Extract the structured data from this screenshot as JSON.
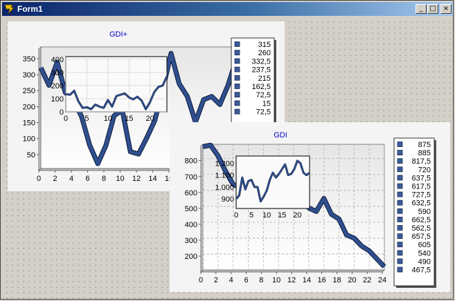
{
  "window": {
    "title": "Form1",
    "minimize_glyph": "_",
    "maximize_glyph": "□",
    "close_glyph": "×"
  },
  "colors": {
    "series_line": "#2f4f8f",
    "series_edge": "#0d1a3a",
    "title_text": "#0000cc",
    "legend_box": "#3d5a9a"
  },
  "chart_data": [
    {
      "type": "line",
      "title": "GDI+",
      "x": [
        0,
        1,
        2,
        3,
        4,
        5,
        6,
        7,
        8,
        9,
        10,
        11,
        12,
        13,
        14,
        15,
        16,
        17,
        18,
        19,
        20,
        21,
        22,
        23,
        24
      ],
      "values": [
        315,
        260,
        332.5,
        237.5,
        215,
        162.5,
        72.5,
        15,
        72.5,
        165,
        182.5,
        52.5,
        45,
        95,
        150,
        250,
        360,
        265,
        225,
        145,
        215,
        225,
        200,
        260,
        340
      ],
      "xlim": [
        0,
        24
      ],
      "ylim": [
        0,
        380
      ],
      "xticks": [
        0,
        2,
        4,
        6,
        8,
        10,
        12,
        14,
        16
      ],
      "yticks": [
        50,
        100,
        150,
        200,
        250,
        300,
        350
      ],
      "legend": [
        "315",
        "260",
        "332,5",
        "237,5",
        "215",
        "162,5",
        "72,5",
        "15",
        "72,5"
      ],
      "inset": {
        "x": [
          0,
          1,
          2,
          3,
          4,
          5,
          6,
          7,
          8,
          9,
          10,
          11,
          12,
          13,
          14,
          15,
          16,
          17,
          18,
          19,
          20,
          21,
          22,
          23,
          24
        ],
        "values": [
          135,
          130,
          160,
          80,
          30,
          35,
          20,
          55,
          40,
          30,
          90,
          40,
          120,
          130,
          140,
          110,
          95,
          115,
          85,
          20,
          75,
          150,
          190,
          200,
          270
        ],
        "xlim": [
          0,
          24
        ],
        "ylim": [
          0,
          420
        ],
        "xticks": [
          0,
          5,
          10,
          15,
          20
        ],
        "yticks": [
          0,
          100,
          200,
          300,
          400
        ]
      }
    },
    {
      "type": "line",
      "title": "GDI",
      "x": [
        0,
        1,
        2,
        3,
        4,
        5,
        6,
        7,
        8,
        9,
        10,
        11,
        12,
        13,
        14,
        15,
        16,
        17,
        18,
        19,
        20,
        21,
        22,
        23,
        24
      ],
      "values": [
        875,
        885,
        817.5,
        720,
        637.5,
        617.5,
        727.5,
        632.5,
        590,
        662.5,
        562.5,
        657.5,
        605,
        540,
        490,
        467.5,
        550,
        450,
        420,
        320,
        300,
        250,
        220,
        170,
        120
      ],
      "xlim": [
        0,
        24
      ],
      "ylim": [
        100,
        890
      ],
      "xticks": [
        0,
        2,
        4,
        6,
        8,
        10,
        12,
        14,
        16,
        18,
        20,
        22,
        24
      ],
      "yticks": [
        200,
        300,
        400,
        500,
        600,
        700,
        800
      ],
      "legend": [
        "875",
        "885",
        "817,5",
        "720",
        "637,5",
        "617,5",
        "727,5",
        "632,5",
        "590",
        "662,5",
        "562,5",
        "657,5",
        "605",
        "540",
        "490",
        "467,5"
      ],
      "inset": {
        "x": [
          0,
          1,
          2,
          3,
          4,
          5,
          6,
          7,
          8,
          9,
          10,
          11,
          12,
          13,
          14,
          15,
          16,
          17,
          18,
          19,
          20,
          21,
          22,
          23,
          24
        ],
        "values": [
          900,
          930,
          1080,
          980,
          1050,
          1060,
          1000,
          1000,
          880,
          920,
          970,
          1060,
          1120,
          1080,
          1110,
          1150,
          1190,
          1100,
          1110,
          1150,
          1220,
          1200,
          1120,
          1100,
          1120
        ],
        "xlim": [
          0,
          24
        ],
        "ylim": [
          820,
          1260
        ],
        "xticks": [
          0,
          5,
          10,
          15,
          20
        ],
        "yticks": [
          900,
          1000,
          1100,
          1200
        ],
        "yticklabels": [
          "900",
          "1.000",
          "1.100",
          "1.200"
        ]
      }
    }
  ]
}
